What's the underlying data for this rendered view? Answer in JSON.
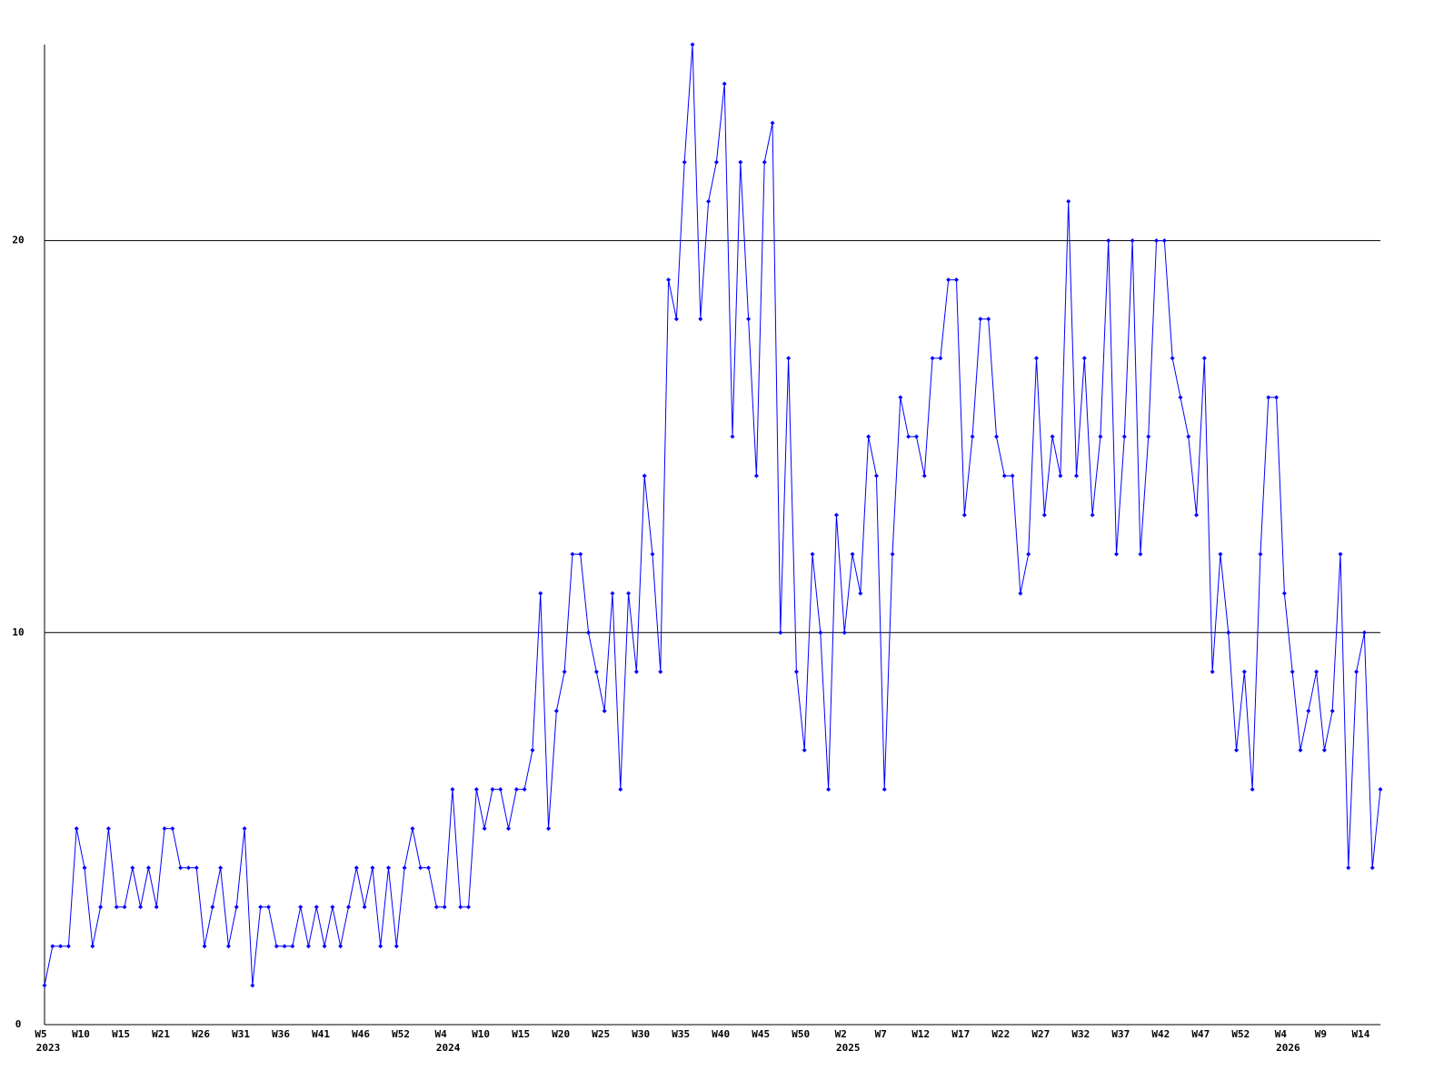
{
  "chart_data": {
    "type": "line",
    "categories": [
      "W5",
      null,
      null,
      null,
      null,
      "W10",
      null,
      null,
      null,
      null,
      "W15",
      null,
      null,
      null,
      null,
      "W21",
      null,
      null,
      null,
      null,
      "W26",
      null,
      null,
      null,
      null,
      "W31",
      null,
      null,
      null,
      null,
      "W36",
      null,
      null,
      null,
      null,
      "W41",
      null,
      null,
      null,
      null,
      "W46",
      null,
      null,
      null,
      null,
      "W52",
      null,
      null,
      null,
      null,
      "W4",
      null,
      null,
      null,
      null,
      "W10",
      null,
      null,
      null,
      null,
      "W15",
      null,
      null,
      null,
      null,
      "W20",
      null,
      null,
      null,
      null,
      "W25",
      null,
      null,
      null,
      null,
      "W30",
      null,
      null,
      null,
      null,
      "W35",
      null,
      null,
      null,
      null,
      "W40",
      null,
      null,
      null,
      null,
      "W45",
      null,
      null,
      null,
      null,
      "W50",
      null,
      null,
      null,
      null,
      "W2",
      null,
      null,
      null,
      null,
      "W7",
      null,
      null,
      null,
      null,
      "W12",
      null,
      null,
      null,
      null,
      "W17",
      null,
      null,
      null,
      null,
      "W22",
      null,
      null,
      null,
      null,
      "W27",
      null,
      null,
      null,
      null,
      "W32",
      null,
      null,
      null,
      null,
      "W37",
      null,
      null,
      null,
      null,
      "W42",
      null,
      null,
      null,
      null,
      "W47",
      null,
      null,
      null,
      null,
      "W52",
      null,
      null,
      null,
      null,
      "W4",
      null,
      null,
      null,
      null,
      "W9",
      null,
      null,
      null,
      null,
      "W14",
      null,
      null
    ],
    "years": [
      "2023",
      null,
      null,
      null,
      null,
      null,
      null,
      null,
      null,
      null,
      null,
      null,
      null,
      null,
      null,
      null,
      null,
      null,
      null,
      null,
      null,
      null,
      null,
      null,
      null,
      null,
      null,
      null,
      null,
      null,
      null,
      null,
      null,
      null,
      null,
      null,
      null,
      null,
      null,
      null,
      null,
      null,
      null,
      null,
      null,
      null,
      null,
      null,
      null,
      null,
      "2024",
      null,
      null,
      null,
      null,
      null,
      null,
      null,
      null,
      null,
      null,
      null,
      null,
      null,
      null,
      null,
      null,
      null,
      null,
      null,
      null,
      null,
      null,
      null,
      null,
      null,
      null,
      null,
      null,
      null,
      null,
      null,
      null,
      null,
      null,
      null,
      null,
      null,
      null,
      null,
      null,
      null,
      null,
      null,
      null,
      null,
      null,
      null,
      null,
      null,
      "2025",
      null,
      null,
      null,
      null,
      null,
      null,
      null,
      null,
      null,
      null,
      null,
      null,
      null,
      null,
      null,
      null,
      null,
      null,
      null,
      null,
      null,
      null,
      null,
      null,
      null,
      null,
      null,
      null,
      null,
      null,
      null,
      null,
      null,
      null,
      null,
      null,
      null,
      null,
      null,
      null,
      null,
      null,
      null,
      null,
      null,
      null,
      null,
      null,
      null,
      null,
      null,
      null,
      null,
      null,
      "2026",
      null,
      null,
      null,
      null,
      null,
      null,
      null,
      null,
      null,
      null,
      null,
      null
    ],
    "values": [
      1,
      2,
      2,
      2,
      5,
      4,
      2,
      3,
      5,
      3,
      3,
      4,
      3,
      4,
      3,
      5,
      5,
      4,
      4,
      4,
      2,
      3,
      4,
      2,
      3,
      5,
      1,
      3,
      3,
      2,
      2,
      2,
      3,
      2,
      3,
      2,
      3,
      2,
      3,
      4,
      3,
      4,
      2,
      4,
      2,
      4,
      5,
      4,
      4,
      3,
      3,
      6,
      3,
      3,
      6,
      5,
      6,
      6,
      5,
      6,
      6,
      7,
      11,
      5,
      8,
      9,
      12,
      12,
      10,
      9,
      8,
      11,
      6,
      11,
      9,
      14,
      12,
      9,
      19,
      18,
      22,
      25,
      18,
      21,
      22,
      24,
      15,
      22,
      18,
      14,
      22,
      23,
      10,
      17,
      9,
      7,
      12,
      10,
      6,
      13,
      10,
      12,
      11,
      15,
      14,
      6,
      12,
      16,
      15,
      15,
      14,
      17,
      17,
      19,
      19,
      13,
      15,
      18,
      18,
      15,
      14,
      14,
      11,
      12,
      17,
      13,
      15,
      14,
      21,
      14,
      17,
      13,
      15,
      20,
      12,
      15,
      20,
      12,
      15,
      20,
      20,
      17,
      16,
      15,
      13,
      17,
      9,
      12,
      10,
      7,
      9,
      6,
      12,
      16,
      16,
      11,
      9,
      7,
      8,
      9,
      7,
      8,
      12,
      4,
      9,
      10,
      4,
      6
    ],
    "color": "#0000ff",
    "ylim": [
      0,
      25
    ],
    "yticks": [
      0,
      10,
      20
    ],
    "grid": true
  }
}
